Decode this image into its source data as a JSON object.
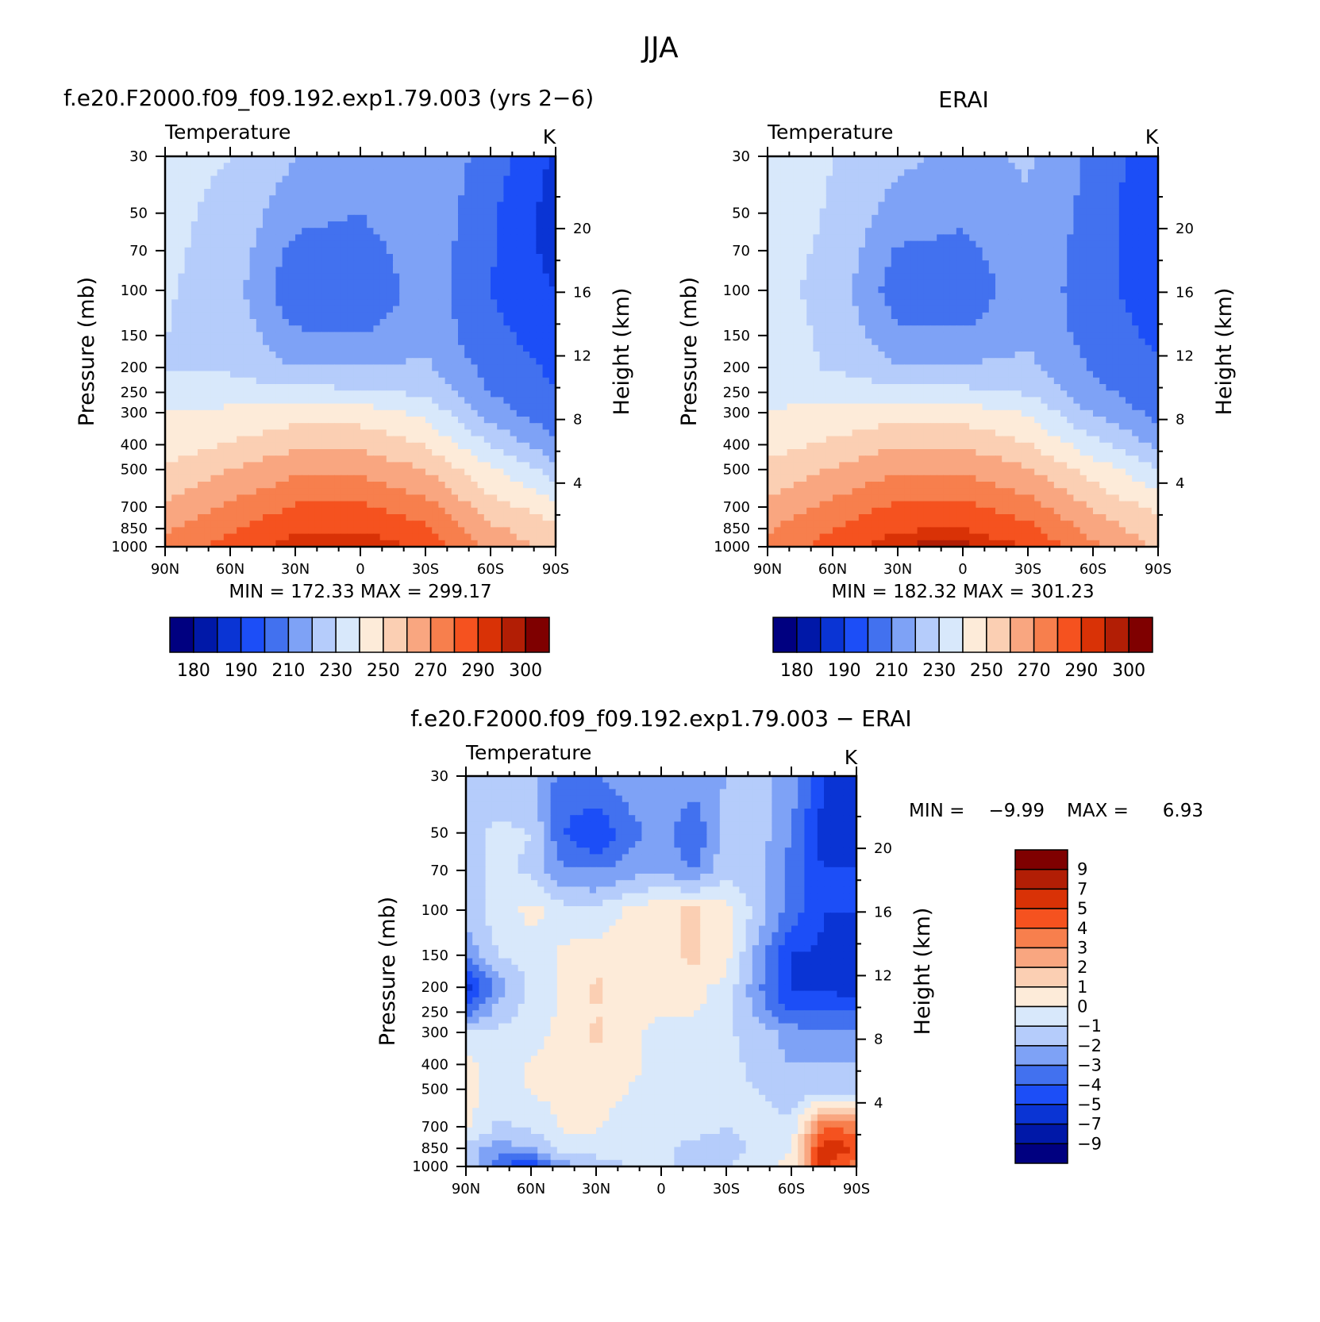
{
  "page": {
    "title": "JJA"
  },
  "colors": {
    "abs_palette": [
      "#000080",
      "#0018a8",
      "#0a34d4",
      "#1c4ef7",
      "#4271ef",
      "#7ea2f6",
      "#b5ccfb",
      "#d8e8fb",
      "#fdebd9",
      "#fbcfb3",
      "#f9a680",
      "#f77f4d",
      "#f5521f",
      "#d93206",
      "#b21e05",
      "#7f0000"
    ],
    "diff_palette": [
      "#000080",
      "#0018a8",
      "#0a34d4",
      "#1c4ef7",
      "#4271ef",
      "#7ea2f6",
      "#b5ccfb",
      "#d8e8fb",
      "#fdebd9",
      "#fbcfb3",
      "#f9a680",
      "#f77f4d",
      "#f5521f",
      "#d93206",
      "#b21e05",
      "#7f0000"
    ]
  },
  "chart_data": [
    {
      "id": "model",
      "type": "heatmap",
      "subtitle": "f.e20.F2000.f09_f09.192.exp1.79.003 (yrs 2−6)",
      "variable": "Temperature",
      "units": "K",
      "xlabel": "",
      "ylabel": "Pressure (mb)",
      "ylabel_right": "Height (km)",
      "x_ticks": [
        "90N",
        "60N",
        "30N",
        "0",
        "30S",
        "60S",
        "90S"
      ],
      "x_values": [
        90,
        60,
        30,
        0,
        -30,
        -60,
        -90
      ],
      "y_ticks": [
        "30",
        "50",
        "70",
        "100",
        "150",
        "200",
        "250",
        "300",
        "400",
        "500",
        "700",
        "850",
        "1000"
      ],
      "y_values": [
        30,
        50,
        70,
        100,
        150,
        200,
        250,
        300,
        400,
        500,
        700,
        850,
        1000
      ],
      "right_ticks": [
        "20",
        "16",
        "12",
        "8",
        "4"
      ],
      "right_values": [
        20,
        16,
        12,
        8,
        4
      ],
      "ylim": [
        1000,
        30
      ],
      "stats_label": "MIN = 172.33 MAX = 299.17",
      "min": 172.33,
      "max": 299.17,
      "levels": [
        180,
        185,
        190,
        200,
        210,
        220,
        230,
        240,
        250,
        260,
        270,
        280,
        290,
        295,
        300
      ],
      "colorbar_labels": [
        "180",
        "190",
        "210",
        "230",
        "250",
        "270",
        "290",
        "300"
      ],
      "field": {
        "lat": [
          90,
          60,
          30,
          0,
          -30,
          -60,
          -90
        ],
        "plev": [
          30,
          50,
          70,
          100,
          150,
          200,
          250,
          300,
          400,
          500,
          700,
          850,
          1000
        ],
        "values": [
          [
            232,
            230,
            220,
            215,
            220,
            205,
            188
          ],
          [
            232,
            228,
            213,
            210,
            218,
            202,
            185
          ],
          [
            232,
            226,
            207,
            205,
            217,
            201,
            186
          ],
          [
            231,
            225,
            202,
            200,
            216,
            200,
            190
          ],
          [
            230,
            227,
            212,
            210,
            217,
            203,
            195
          ],
          [
            230,
            228,
            220,
            220,
            222,
            206,
            198
          ],
          [
            234,
            236,
            234,
            232,
            228,
            210,
            200
          ],
          [
            240,
            242,
            246,
            245,
            238,
            215,
            203
          ],
          [
            245,
            251,
            258,
            258,
            250,
            230,
            212
          ],
          [
            252,
            260,
            268,
            268,
            260,
            242,
            225
          ],
          [
            262,
            272,
            281,
            282,
            274,
            255,
            244
          ],
          [
            268,
            279,
            288,
            289,
            282,
            262,
            252
          ],
          [
            272,
            284,
            295,
            296,
            288,
            268,
            256
          ]
        ]
      }
    },
    {
      "id": "obs",
      "type": "heatmap",
      "subtitle": "ERAI",
      "variable": "Temperature",
      "units": "K",
      "xlabel": "",
      "ylabel": "Pressure (mb)",
      "ylabel_right": "Height (km)",
      "x_ticks": [
        "90N",
        "60N",
        "30N",
        "0",
        "30S",
        "60S",
        "90S"
      ],
      "x_values": [
        90,
        60,
        30,
        0,
        -30,
        -60,
        -90
      ],
      "y_ticks": [
        "30",
        "50",
        "70",
        "100",
        "150",
        "200",
        "250",
        "300",
        "400",
        "500",
        "700",
        "850",
        "1000"
      ],
      "y_values": [
        30,
        50,
        70,
        100,
        150,
        200,
        250,
        300,
        400,
        500,
        700,
        850,
        1000
      ],
      "right_ticks": [
        "20",
        "16",
        "12",
        "8",
        "4"
      ],
      "right_values": [
        20,
        16,
        12,
        8,
        4
      ],
      "ylim": [
        1000,
        30
      ],
      "stats_label": "MIN = 182.32 MAX = 301.23",
      "min": 182.32,
      "max": 301.23,
      "levels": [
        180,
        185,
        190,
        200,
        210,
        220,
        230,
        240,
        250,
        260,
        270,
        280,
        290,
        295,
        300
      ],
      "colorbar_labels": [
        "180",
        "190",
        "210",
        "230",
        "250",
        "270",
        "290",
        "300"
      ],
      "field": {
        "lat": [
          90,
          60,
          30,
          0,
          -30,
          -60,
          -90
        ],
        "plev": [
          30,
          50,
          70,
          100,
          150,
          200,
          250,
          300,
          400,
          500,
          700,
          850,
          1000
        ],
        "values": [
          [
            236,
            230,
            222,
            218,
            221,
            208,
            192
          ],
          [
            235,
            229,
            215,
            212,
            219,
            206,
            190
          ],
          [
            234,
            228,
            209,
            207,
            218,
            205,
            191
          ],
          [
            233,
            227,
            204,
            202,
            217,
            204,
            194
          ],
          [
            235,
            228,
            213,
            212,
            218,
            206,
            198
          ],
          [
            234,
            229,
            221,
            221,
            223,
            209,
            201
          ],
          [
            236,
            237,
            235,
            233,
            229,
            213,
            204
          ],
          [
            241,
            243,
            247,
            246,
            239,
            219,
            207
          ],
          [
            246,
            252,
            259,
            259,
            251,
            234,
            218
          ],
          [
            253,
            261,
            269,
            269,
            261,
            246,
            231
          ],
          [
            263,
            273,
            282,
            283,
            275,
            259,
            248
          ],
          [
            269,
            280,
            289,
            290,
            283,
            266,
            254
          ],
          [
            273,
            285,
            296,
            297,
            290,
            272,
            258
          ]
        ]
      }
    },
    {
      "id": "diff",
      "type": "heatmap",
      "subtitle": "f.e20.F2000.f09_f09.192.exp1.79.003 − ERAI",
      "variable": "Temperature",
      "units": "K",
      "xlabel": "",
      "ylabel": "Pressure (mb)",
      "ylabel_right": "Height (km)",
      "x_ticks": [
        "90N",
        "60N",
        "30N",
        "0",
        "30S",
        "60S",
        "90S"
      ],
      "x_values": [
        90,
        60,
        30,
        0,
        -30,
        -60,
        -90
      ],
      "y_ticks": [
        "30",
        "50",
        "70",
        "100",
        "150",
        "200",
        "250",
        "300",
        "400",
        "500",
        "700",
        "850",
        "1000"
      ],
      "y_values": [
        30,
        50,
        70,
        100,
        150,
        200,
        250,
        300,
        400,
        500,
        700,
        850,
        1000
      ],
      "right_ticks": [
        "20",
        "16",
        "12",
        "8",
        "4"
      ],
      "right_values": [
        20,
        16,
        12,
        8,
        4
      ],
      "ylim": [
        1000,
        30
      ],
      "stats_min_label": "MIN =",
      "stats_min_value": "−9.99",
      "stats_max_label": "MAX =",
      "stats_max_value": "6.93",
      "min": -9.99,
      "max": 6.93,
      "levels": [
        -9,
        -7,
        -5,
        -4,
        -3,
        -2,
        -1,
        0,
        1,
        2,
        3,
        4,
        5,
        7,
        9
      ],
      "colorbar_labels": [
        "9",
        "7",
        "5",
        "4",
        "3",
        "2",
        "1",
        "0",
        "−1",
        "−2",
        "−3",
        "−4",
        "−5",
        "−7",
        "−9"
      ],
      "field": {
        "lat": [
          90,
          75,
          60,
          45,
          30,
          15,
          0,
          -15,
          -30,
          -45,
          -60,
          -75,
          -90
        ],
        "plev": [
          30,
          50,
          70,
          100,
          150,
          200,
          250,
          300,
          400,
          500,
          700,
          850,
          1000
        ],
        "values": [
          [
            -1.5,
            -1.5,
            -1.8,
            -3.5,
            -3.0,
            -2.5,
            -2.0,
            -2.5,
            -2.0,
            -1.5,
            -2.5,
            -5.0,
            -6.5
          ],
          [
            -1.2,
            -0.8,
            -1.0,
            -4.0,
            -5.0,
            -3.5,
            -2.5,
            -4.0,
            -1.5,
            -1.5,
            -3.0,
            -5.5,
            -5.5
          ],
          [
            -1.5,
            -0.7,
            -1.2,
            -3.0,
            -3.0,
            -2.5,
            -2.0,
            -3.0,
            -1.2,
            -1.8,
            -3.5,
            -5.0,
            -5.0
          ],
          [
            -1.5,
            -0.5,
            0.3,
            -0.5,
            -0.8,
            0.2,
            0.8,
            1.2,
            0.5,
            -1.5,
            -3.5,
            -5.0,
            -5.0
          ],
          [
            -3.0,
            -1.0,
            -0.6,
            0.2,
            0.6,
            0.5,
            0.6,
            1.3,
            0.3,
            -2.5,
            -5.0,
            -5.2,
            -5.0
          ],
          [
            -5.5,
            -2.5,
            -0.8,
            0.2,
            1.2,
            0.5,
            0.3,
            0.3,
            -0.3,
            -2.8,
            -5.2,
            -5.2,
            -5.5
          ],
          [
            -3.5,
            -1.5,
            -0.6,
            0.2,
            1.0,
            0.4,
            0.2,
            0.1,
            -0.5,
            -2.5,
            -4.0,
            -4.0,
            -4.0
          ],
          [
            -1.0,
            -0.8,
            -0.6,
            0.5,
            1.2,
            0.5,
            -0.5,
            -0.6,
            -0.8,
            -1.5,
            -2.5,
            -3.0,
            -3.0
          ],
          [
            0.5,
            -0.5,
            0.2,
            0.5,
            0.8,
            0.3,
            -0.5,
            -0.6,
            -0.8,
            -1.2,
            -2.0,
            -2.0,
            -2.0
          ],
          [
            0.4,
            -0.6,
            0.1,
            0.3,
            0.4,
            0.0,
            -0.5,
            -0.6,
            -0.8,
            -1.0,
            -1.6,
            -1.4,
            -1.5
          ],
          [
            0.3,
            -1.2,
            -0.9,
            0.1,
            0.2,
            -0.6,
            -0.5,
            -0.5,
            -1.0,
            -0.5,
            -0.8,
            4.0,
            3.5
          ],
          [
            -1.5,
            -2.5,
            -2.0,
            -0.5,
            -0.6,
            -0.8,
            -0.7,
            -1.5,
            -1.8,
            -0.5,
            -0.2,
            6.0,
            5.0
          ],
          [
            -1.2,
            -4.0,
            -5.0,
            -2.5,
            -1.5,
            -1.0,
            -0.8,
            -1.2,
            -1.0,
            -0.6,
            0.5,
            5.5,
            3.0
          ]
        ]
      }
    }
  ]
}
